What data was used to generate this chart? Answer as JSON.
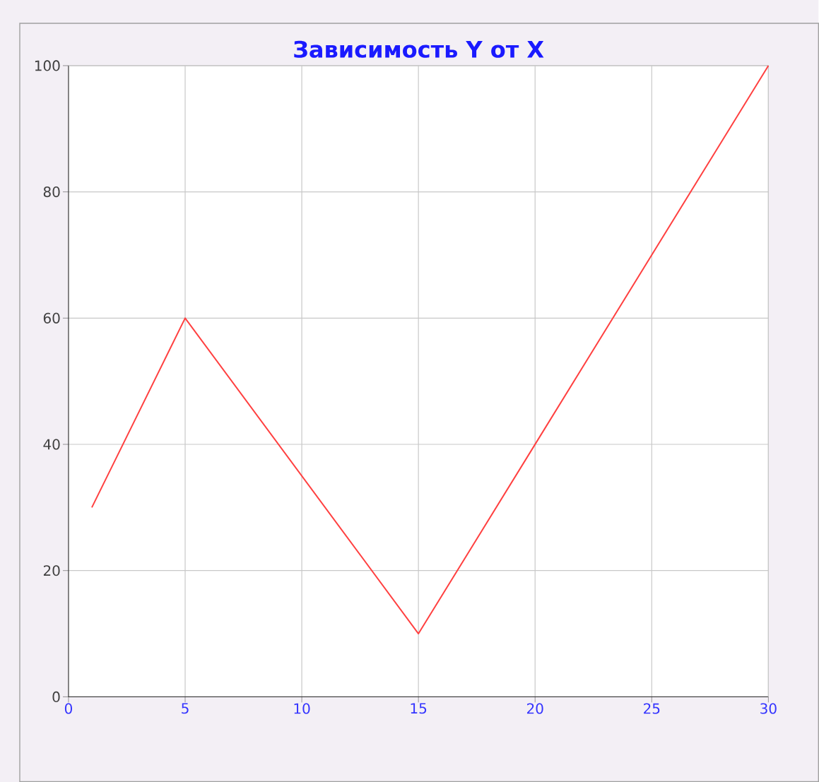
{
  "chart_data": {
    "type": "line",
    "title": "Зависимость Y от X",
    "x": [
      1,
      5,
      15,
      30
    ],
    "series": [
      {
        "color": "#ff4040",
        "values": [
          30,
          60,
          10,
          100
        ]
      }
    ],
    "xlim": [
      0,
      30
    ],
    "ylim": [
      0,
      100
    ],
    "xticks": [
      0,
      5,
      10,
      15,
      20,
      25,
      30
    ],
    "yticks": [
      0,
      20,
      40,
      60,
      80,
      100
    ],
    "grid": true,
    "line_style": "solid",
    "marker": "none"
  }
}
